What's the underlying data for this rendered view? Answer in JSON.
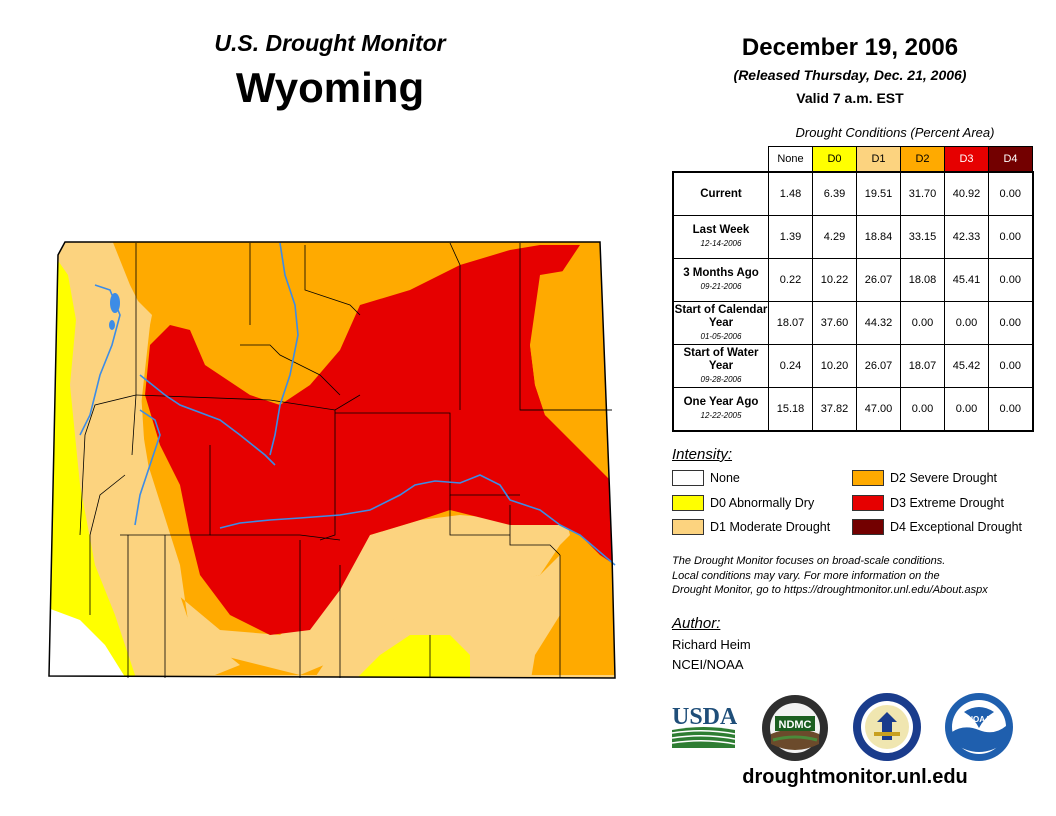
{
  "header": {
    "monitor_title": "U.S. Drought Monitor",
    "state": "Wyoming",
    "date": "December 19, 2006",
    "released": "(Released Thursday, Dec. 21, 2006)",
    "valid": "Valid 7 a.m. EST"
  },
  "table": {
    "title": "Drought Conditions (Percent Area)",
    "columns": [
      "None",
      "D0",
      "D1",
      "D2",
      "D3",
      "D4"
    ],
    "rows": [
      {
        "label": "Current",
        "date": "",
        "values": [
          "1.48",
          "6.39",
          "19.51",
          "31.70",
          "40.92",
          "0.00"
        ]
      },
      {
        "label": "Last Week",
        "date": "12-14-2006",
        "values": [
          "1.39",
          "4.29",
          "18.84",
          "33.15",
          "42.33",
          "0.00"
        ]
      },
      {
        "label": "3 Months Ago",
        "date": "09-21-2006",
        "values": [
          "0.22",
          "10.22",
          "26.07",
          "18.08",
          "45.41",
          "0.00"
        ]
      },
      {
        "label": "Start of Calendar Year",
        "date": "01-05-2006",
        "values": [
          "18.07",
          "37.60",
          "44.32",
          "0.00",
          "0.00",
          "0.00"
        ]
      },
      {
        "label": "Start of Water Year",
        "date": "09-28-2006",
        "values": [
          "0.24",
          "10.20",
          "26.07",
          "18.07",
          "45.42",
          "0.00"
        ]
      },
      {
        "label": "One Year Ago",
        "date": "12-22-2005",
        "values": [
          "15.18",
          "37.82",
          "47.00",
          "0.00",
          "0.00",
          "0.00"
        ]
      }
    ]
  },
  "legend": {
    "title": "Intensity:",
    "items": [
      {
        "label": "None",
        "color": "#ffffff"
      },
      {
        "label": "D0 Abnormally Dry",
        "color": "#ffff00"
      },
      {
        "label": "D1 Moderate Drought",
        "color": "#fcd37f"
      },
      {
        "label": "D2 Severe Drought",
        "color": "#ffaa00"
      },
      {
        "label": "D3 Extreme Drought",
        "color": "#e60000"
      },
      {
        "label": "D4 Exceptional Drought",
        "color": "#730000"
      }
    ]
  },
  "note": {
    "line1": "The Drought Monitor focuses on broad-scale conditions.",
    "line2": "Local conditions may vary. For more information on the",
    "line3": "Drought Monitor, go to https://droughtmonitor.unl.edu/About.aspx"
  },
  "author": {
    "title": "Author:",
    "name": "Richard Heim",
    "org": "NCEI/NOAA"
  },
  "logos": {
    "usda": "USDA",
    "ndmc": "NDMC",
    "noaa": "NOAA"
  },
  "footer": {
    "website": "droughtmonitor.unl.edu"
  },
  "map": {
    "colors": {
      "none": "#ffffff",
      "d0": "#ffff00",
      "d1": "#fcd37f",
      "d2": "#ffaa00",
      "d3": "#e60000",
      "water": "#3c8ce6"
    }
  }
}
